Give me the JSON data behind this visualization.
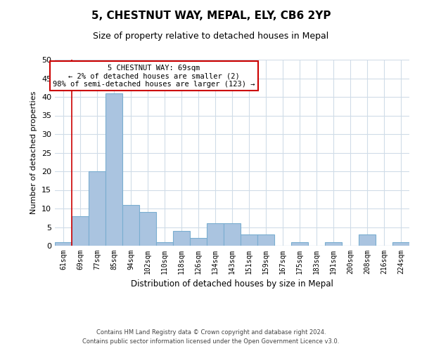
{
  "title": "5, CHESTNUT WAY, MEPAL, ELY, CB6 2YP",
  "subtitle": "Size of property relative to detached houses in Mepal",
  "xlabel": "Distribution of detached houses by size in Mepal",
  "ylabel": "Number of detached properties",
  "bar_color": "#aac4e0",
  "bar_edge_color": "#7aaed0",
  "bin_labels": [
    "61sqm",
    "69sqm",
    "77sqm",
    "85sqm",
    "94sqm",
    "102sqm",
    "110sqm",
    "118sqm",
    "126sqm",
    "134sqm",
    "143sqm",
    "151sqm",
    "159sqm",
    "167sqm",
    "175sqm",
    "183sqm",
    "191sqm",
    "200sqm",
    "208sqm",
    "216sqm",
    "224sqm"
  ],
  "bar_heights": [
    1,
    8,
    20,
    41,
    11,
    9,
    1,
    4,
    2,
    6,
    6,
    3,
    3,
    0,
    1,
    0,
    1,
    0,
    3,
    0,
    1
  ],
  "vline_x": 1,
  "vline_color": "#cc0000",
  "ylim": [
    0,
    50
  ],
  "yticks": [
    0,
    5,
    10,
    15,
    20,
    25,
    30,
    35,
    40,
    45,
    50
  ],
  "annotation_title": "5 CHESTNUT WAY: 69sqm",
  "annotation_line1": "← 2% of detached houses are smaller (2)",
  "annotation_line2": "98% of semi-detached houses are larger (123) →",
  "annotation_box_color": "#ffffff",
  "annotation_box_edge_color": "#cc0000",
  "footer_line1": "Contains HM Land Registry data © Crown copyright and database right 2024.",
  "footer_line2": "Contains public sector information licensed under the Open Government Licence v3.0.",
  "background_color": "#ffffff",
  "grid_color": "#d0dce8"
}
